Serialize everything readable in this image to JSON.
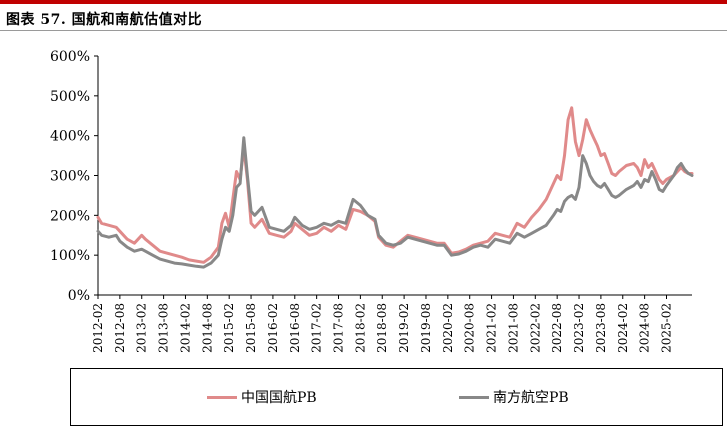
{
  "figure": {
    "title": "图表 57. 国航和南航估值对比"
  },
  "colors": {
    "accent_rule": "#c00000",
    "series_1": "#e08a8a",
    "series_2": "#888888"
  },
  "chart_data": {
    "type": "line",
    "title": "图表 57. 国航和南航估值对比",
    "xlabel": "",
    "ylabel": "",
    "ylim": [
      0,
      600
    ],
    "yticks": [
      "0%",
      "100%",
      "200%",
      "300%",
      "400%",
      "500%",
      "600%"
    ],
    "xticks": [
      "2012-02",
      "2012-08",
      "2013-02",
      "2013-08",
      "2014-02",
      "2014-08",
      "2015-02",
      "2015-08",
      "2016-02",
      "2016-08",
      "2017-02",
      "2017-08",
      "2018-02",
      "2018-08",
      "2019-02",
      "2019-08",
      "2020-02",
      "2020-08",
      "2021-02",
      "2021-08",
      "2022-02",
      "2022-08",
      "2023-02",
      "2023-08",
      "2024-02",
      "2024-08",
      "2025-02"
    ],
    "xrange": [
      "2012-02",
      "2025-09"
    ],
    "grid": false,
    "legend_position": "bottom",
    "series": [
      {
        "name": "中国国航PB",
        "color": "#e08a8a",
        "points": [
          [
            "2012-02",
            195
          ],
          [
            "2012-03",
            180
          ],
          [
            "2012-05",
            175
          ],
          [
            "2012-07",
            170
          ],
          [
            "2012-08",
            160
          ],
          [
            "2012-10",
            140
          ],
          [
            "2012-12",
            130
          ],
          [
            "2013-02",
            150
          ],
          [
            "2013-03",
            140
          ],
          [
            "2013-05",
            125
          ],
          [
            "2013-07",
            110
          ],
          [
            "2013-09",
            105
          ],
          [
            "2013-11",
            100
          ],
          [
            "2014-01",
            95
          ],
          [
            "2014-03",
            88
          ],
          [
            "2014-05",
            85
          ],
          [
            "2014-07",
            82
          ],
          [
            "2014-09",
            95
          ],
          [
            "2014-11",
            120
          ],
          [
            "2014-12",
            180
          ],
          [
            "2015-01",
            205
          ],
          [
            "2015-02",
            170
          ],
          [
            "2015-03",
            240
          ],
          [
            "2015-04",
            310
          ],
          [
            "2015-05",
            290
          ],
          [
            "2015-06",
            370
          ],
          [
            "2015-07",
            290
          ],
          [
            "2015-08",
            180
          ],
          [
            "2015-09",
            170
          ],
          [
            "2015-11",
            190
          ],
          [
            "2016-01",
            155
          ],
          [
            "2016-03",
            150
          ],
          [
            "2016-05",
            145
          ],
          [
            "2016-07",
            160
          ],
          [
            "2016-08",
            180
          ],
          [
            "2016-10",
            165
          ],
          [
            "2016-12",
            150
          ],
          [
            "2017-02",
            155
          ],
          [
            "2017-04",
            170
          ],
          [
            "2017-06",
            160
          ],
          [
            "2017-08",
            175
          ],
          [
            "2017-10",
            165
          ],
          [
            "2017-12",
            215
          ],
          [
            "2018-02",
            210
          ],
          [
            "2018-04",
            200
          ],
          [
            "2018-06",
            185
          ],
          [
            "2018-07",
            145
          ],
          [
            "2018-09",
            125
          ],
          [
            "2018-11",
            120
          ],
          [
            "2019-01",
            135
          ],
          [
            "2019-03",
            150
          ],
          [
            "2019-05",
            145
          ],
          [
            "2019-07",
            140
          ],
          [
            "2019-09",
            135
          ],
          [
            "2019-11",
            130
          ],
          [
            "2020-01",
            130
          ],
          [
            "2020-03",
            105
          ],
          [
            "2020-05",
            108
          ],
          [
            "2020-07",
            115
          ],
          [
            "2020-09",
            125
          ],
          [
            "2020-11",
            130
          ],
          [
            "2021-01",
            135
          ],
          [
            "2021-03",
            155
          ],
          [
            "2021-05",
            150
          ],
          [
            "2021-07",
            145
          ],
          [
            "2021-09",
            180
          ],
          [
            "2021-11",
            170
          ],
          [
            "2022-01",
            195
          ],
          [
            "2022-03",
            215
          ],
          [
            "2022-05",
            240
          ],
          [
            "2022-07",
            280
          ],
          [
            "2022-08",
            300
          ],
          [
            "2022-09",
            290
          ],
          [
            "2022-10",
            350
          ],
          [
            "2022-11",
            440
          ],
          [
            "2022-12",
            470
          ],
          [
            "2023-01",
            385
          ],
          [
            "2023-02",
            350
          ],
          [
            "2023-03",
            390
          ],
          [
            "2023-04",
            440
          ],
          [
            "2023-05",
            415
          ],
          [
            "2023-06",
            395
          ],
          [
            "2023-07",
            375
          ],
          [
            "2023-08",
            350
          ],
          [
            "2023-09",
            355
          ],
          [
            "2023-10",
            330
          ],
          [
            "2023-11",
            305
          ],
          [
            "2023-12",
            300
          ],
          [
            "2024-01",
            310
          ],
          [
            "2024-03",
            325
          ],
          [
            "2024-05",
            330
          ],
          [
            "2024-06",
            320
          ],
          [
            "2024-07",
            300
          ],
          [
            "2024-08",
            340
          ],
          [
            "2024-09",
            320
          ],
          [
            "2024-10",
            330
          ],
          [
            "2024-11",
            310
          ],
          [
            "2024-12",
            290
          ],
          [
            "2025-01",
            280
          ],
          [
            "2025-02",
            290
          ],
          [
            "2025-04",
            300
          ],
          [
            "2025-05",
            310
          ],
          [
            "2025-06",
            320
          ],
          [
            "2025-07",
            310
          ],
          [
            "2025-08",
            305
          ],
          [
            "2025-09",
            305
          ]
        ]
      },
      {
        "name": "南方航空PB",
        "color": "#888888",
        "points": [
          [
            "2012-02",
            160
          ],
          [
            "2012-03",
            150
          ],
          [
            "2012-05",
            145
          ],
          [
            "2012-07",
            150
          ],
          [
            "2012-08",
            135
          ],
          [
            "2012-10",
            120
          ],
          [
            "2012-12",
            110
          ],
          [
            "2013-02",
            115
          ],
          [
            "2013-03",
            110
          ],
          [
            "2013-05",
            100
          ],
          [
            "2013-07",
            90
          ],
          [
            "2013-09",
            85
          ],
          [
            "2013-11",
            80
          ],
          [
            "2014-01",
            78
          ],
          [
            "2014-03",
            75
          ],
          [
            "2014-05",
            72
          ],
          [
            "2014-07",
            70
          ],
          [
            "2014-09",
            80
          ],
          [
            "2014-11",
            100
          ],
          [
            "2014-12",
            140
          ],
          [
            "2015-01",
            170
          ],
          [
            "2015-02",
            160
          ],
          [
            "2015-03",
            200
          ],
          [
            "2015-04",
            270
          ],
          [
            "2015-05",
            280
          ],
          [
            "2015-06",
            395
          ],
          [
            "2015-07",
            300
          ],
          [
            "2015-08",
            210
          ],
          [
            "2015-09",
            200
          ],
          [
            "2015-11",
            220
          ],
          [
            "2016-01",
            170
          ],
          [
            "2016-03",
            165
          ],
          [
            "2016-05",
            160
          ],
          [
            "2016-07",
            175
          ],
          [
            "2016-08",
            195
          ],
          [
            "2016-10",
            175
          ],
          [
            "2016-12",
            165
          ],
          [
            "2017-02",
            170
          ],
          [
            "2017-04",
            180
          ],
          [
            "2017-06",
            175
          ],
          [
            "2017-08",
            185
          ],
          [
            "2017-10",
            180
          ],
          [
            "2017-12",
            240
          ],
          [
            "2018-02",
            225
          ],
          [
            "2018-04",
            200
          ],
          [
            "2018-06",
            190
          ],
          [
            "2018-07",
            150
          ],
          [
            "2018-09",
            130
          ],
          [
            "2018-11",
            125
          ],
          [
            "2019-01",
            130
          ],
          [
            "2019-03",
            145
          ],
          [
            "2019-05",
            140
          ],
          [
            "2019-07",
            135
          ],
          [
            "2019-09",
            130
          ],
          [
            "2019-11",
            125
          ],
          [
            "2020-01",
            125
          ],
          [
            "2020-03",
            100
          ],
          [
            "2020-05",
            103
          ],
          [
            "2020-07",
            110
          ],
          [
            "2020-09",
            120
          ],
          [
            "2020-11",
            125
          ],
          [
            "2021-01",
            120
          ],
          [
            "2021-03",
            140
          ],
          [
            "2021-05",
            135
          ],
          [
            "2021-07",
            130
          ],
          [
            "2021-09",
            155
          ],
          [
            "2021-11",
            145
          ],
          [
            "2022-01",
            155
          ],
          [
            "2022-03",
            165
          ],
          [
            "2022-05",
            175
          ],
          [
            "2022-07",
            200
          ],
          [
            "2022-08",
            215
          ],
          [
            "2022-09",
            210
          ],
          [
            "2022-10",
            235
          ],
          [
            "2022-11",
            245
          ],
          [
            "2022-12",
            250
          ],
          [
            "2023-01",
            240
          ],
          [
            "2023-02",
            270
          ],
          [
            "2023-03",
            350
          ],
          [
            "2023-04",
            330
          ],
          [
            "2023-05",
            300
          ],
          [
            "2023-06",
            285
          ],
          [
            "2023-07",
            275
          ],
          [
            "2023-08",
            270
          ],
          [
            "2023-09",
            280
          ],
          [
            "2023-10",
            265
          ],
          [
            "2023-11",
            250
          ],
          [
            "2023-12",
            245
          ],
          [
            "2024-01",
            250
          ],
          [
            "2024-03",
            265
          ],
          [
            "2024-05",
            275
          ],
          [
            "2024-06",
            285
          ],
          [
            "2024-07",
            270
          ],
          [
            "2024-08",
            290
          ],
          [
            "2024-09",
            285
          ],
          [
            "2024-10",
            310
          ],
          [
            "2024-11",
            290
          ],
          [
            "2024-12",
            265
          ],
          [
            "2025-01",
            260
          ],
          [
            "2025-02",
            275
          ],
          [
            "2025-04",
            300
          ],
          [
            "2025-05",
            320
          ],
          [
            "2025-06",
            330
          ],
          [
            "2025-07",
            315
          ],
          [
            "2025-08",
            305
          ],
          [
            "2025-09",
            300
          ]
        ]
      }
    ]
  }
}
